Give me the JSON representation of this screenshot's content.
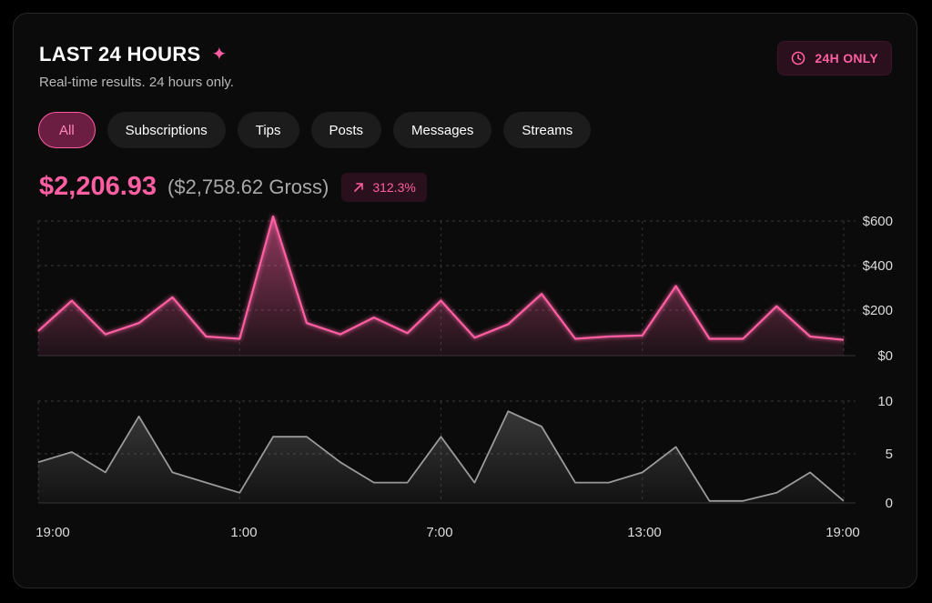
{
  "header": {
    "title": "LAST 24 HOURS",
    "subtitle": "Real-time results. 24 hours only.",
    "badge": "24H ONLY"
  },
  "tabs": [
    {
      "label": "All",
      "active": true
    },
    {
      "label": "Subscriptions",
      "active": false
    },
    {
      "label": "Tips",
      "active": false
    },
    {
      "label": "Posts",
      "active": false
    },
    {
      "label": "Messages",
      "active": false
    },
    {
      "label": "Streams",
      "active": false
    }
  ],
  "totals": {
    "net": "$2,206.93",
    "gross": "($2,758.62 Gross)",
    "change": "312.3%"
  },
  "colors": {
    "accent": "#ff5fa2",
    "secondary_line": "#9a9a9a"
  },
  "chart_data": [
    {
      "type": "area",
      "x_hours": [
        19,
        20,
        21,
        22,
        23,
        0,
        1,
        2,
        3,
        4,
        5,
        6,
        7,
        8,
        9,
        10,
        11,
        12,
        13,
        14,
        15,
        16,
        17,
        18,
        19
      ],
      "x_ticks": [
        "19:00",
        "1:00",
        "7:00",
        "13:00",
        "19:00"
      ],
      "values": [
        110,
        245,
        95,
        145,
        260,
        85,
        75,
        620,
        145,
        95,
        170,
        100,
        245,
        80,
        140,
        275,
        75,
        85,
        90,
        310,
        75,
        75,
        220,
        85,
        70
      ],
      "ylim": [
        0,
        600
      ],
      "y_ticks": [
        "$600",
        "$400",
        "$200",
        "$0"
      ],
      "y_tick_values": [
        600,
        400,
        200,
        0
      ],
      "grid": true,
      "color": "#ff5fa2"
    },
    {
      "type": "area",
      "x_hours": [
        19,
        20,
        21,
        22,
        23,
        0,
        1,
        2,
        3,
        4,
        5,
        6,
        7,
        8,
        9,
        10,
        11,
        12,
        13,
        14,
        15,
        16,
        17,
        18,
        19
      ],
      "values": [
        4,
        5,
        3,
        8.5,
        3,
        2,
        1,
        6.5,
        6.5,
        4,
        2,
        2,
        6.5,
        2,
        9,
        7.5,
        2,
        2,
        3,
        5.5,
        0.2,
        0.2,
        1,
        3,
        0.2
      ],
      "ylim": [
        0,
        10
      ],
      "y_ticks": [
        "10",
        "5",
        "0"
      ],
      "y_tick_values": [
        10,
        5,
        0
      ],
      "grid": true,
      "color": "#9a9a9a"
    }
  ]
}
